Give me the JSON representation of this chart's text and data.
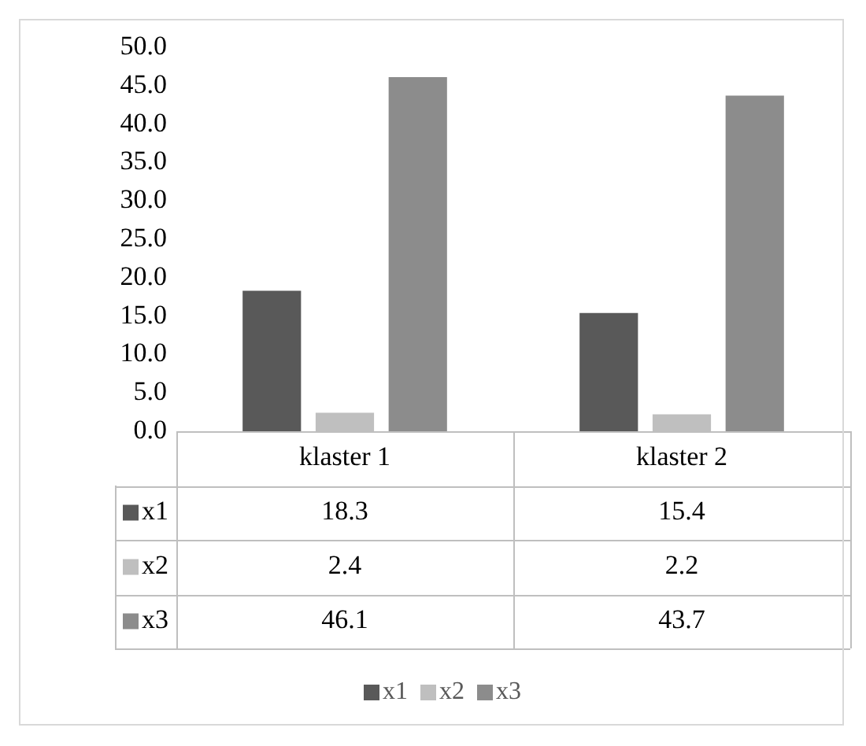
{
  "chart_data": {
    "type": "bar",
    "categories": [
      "klaster 1",
      "klaster 2"
    ],
    "series": [
      {
        "name": "x1",
        "color": "#595959",
        "values": [
          18.3,
          15.4
        ]
      },
      {
        "name": "x2",
        "color": "#bfbfbf",
        "values": [
          2.4,
          2.2
        ]
      },
      {
        "name": "x3",
        "color": "#8c8c8c",
        "values": [
          46.1,
          43.7
        ]
      }
    ],
    "ylim": [
      0,
      50
    ],
    "yticks": [
      {
        "value": 0,
        "label": "0.0"
      },
      {
        "value": 5,
        "label": "5.0"
      },
      {
        "value": 10,
        "label": "10.0"
      },
      {
        "value": 15,
        "label": "15.0"
      },
      {
        "value": 20,
        "label": "20.0"
      },
      {
        "value": 25,
        "label": "25.0"
      },
      {
        "value": 30,
        "label": "30.0"
      },
      {
        "value": 35,
        "label": "35.0"
      },
      {
        "value": 40,
        "label": "40.0"
      },
      {
        "value": 45,
        "label": "45.0"
      },
      {
        "value": 50,
        "label": "50.0"
      }
    ],
    "grid": false,
    "legend": "bottom",
    "data_labels": true
  }
}
